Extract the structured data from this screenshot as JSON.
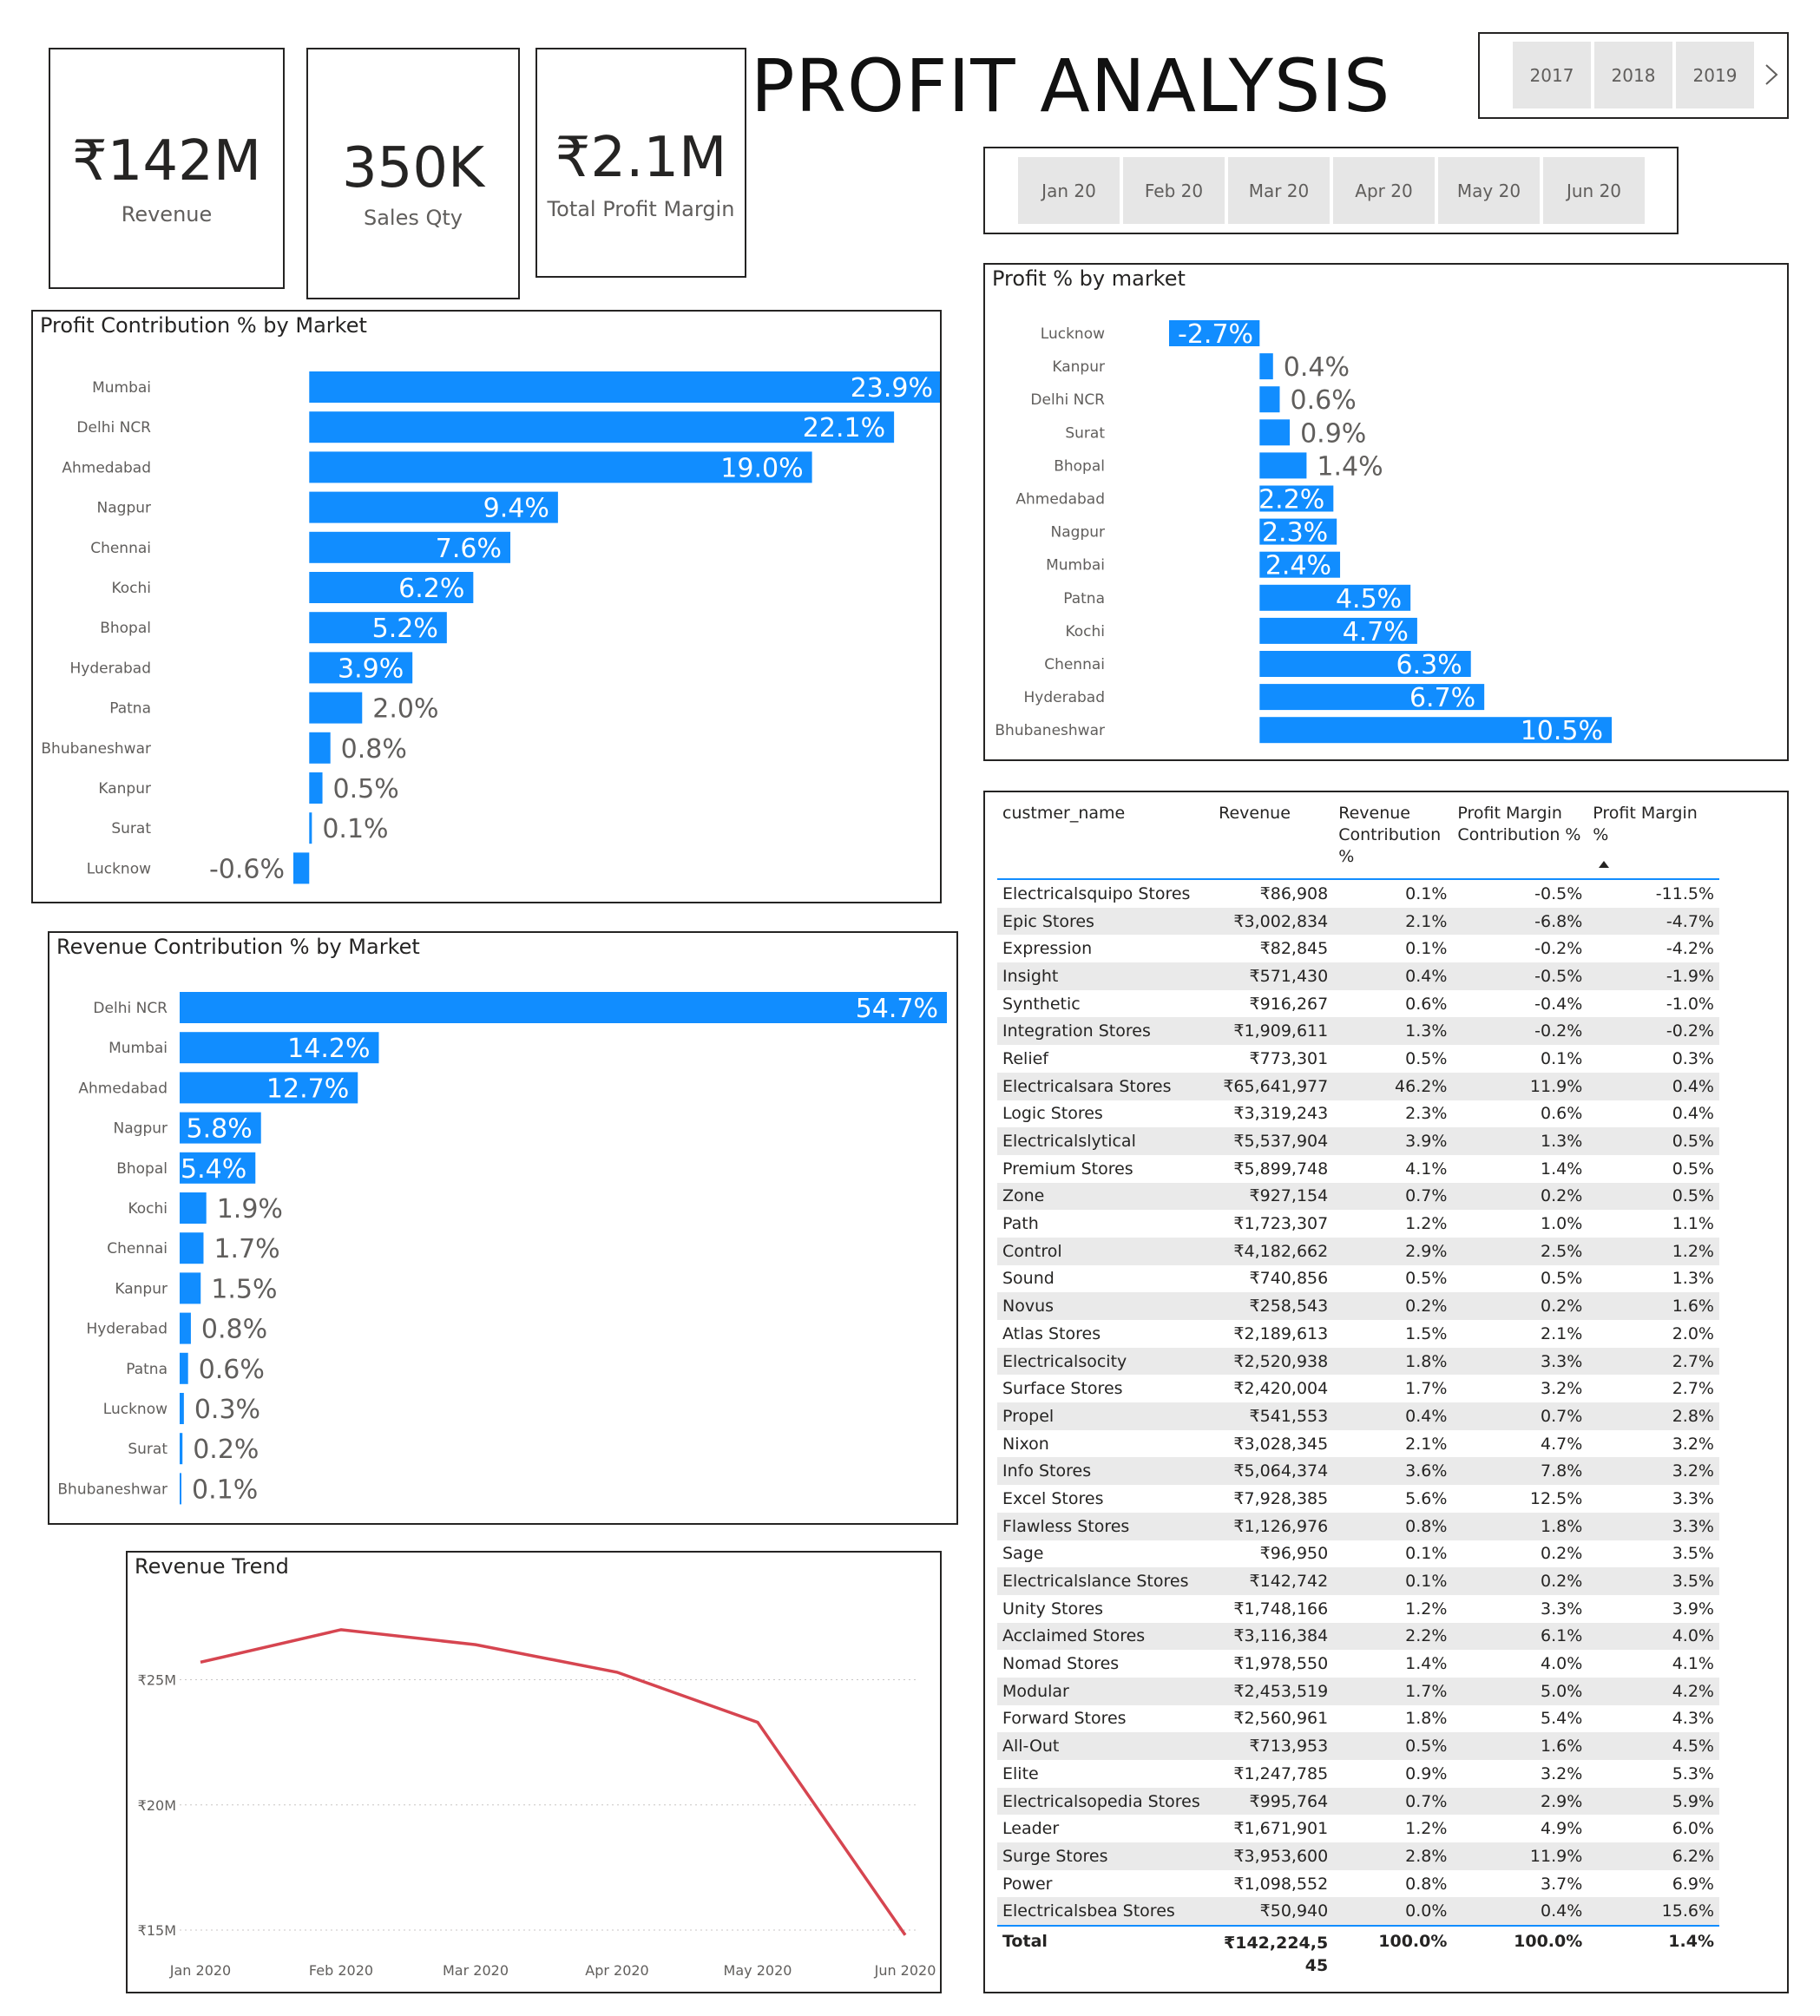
{
  "title": "PROFIT ANALYSIS",
  "kpis": {
    "revenue": {
      "value": "₹142M",
      "label": "Revenue"
    },
    "sales_qty": {
      "value": "350K",
      "label": "Sales Qty"
    },
    "profit_margin": {
      "value": "₹2.1M",
      "label": "Total Profit Margin"
    }
  },
  "year_slicer": {
    "years": [
      "2017",
      "2018",
      "2019"
    ],
    "next_icon": "chevron-right-icon"
  },
  "month_slicer": {
    "months": [
      "Jan 20",
      "Feb 20",
      "Mar 20",
      "Apr 20",
      "May 20",
      "Jun 20"
    ]
  },
  "colors": {
    "bar": "#118dff",
    "trend_line": "#d64550",
    "text": "#252423"
  },
  "chart_data": [
    {
      "id": "profit_contribution",
      "type": "bar",
      "orientation": "horizontal",
      "title": "Profit Contribution % by Market",
      "categories": [
        "Mumbai",
        "Delhi NCR",
        "Ahmedabad",
        "Nagpur",
        "Chennai",
        "Kochi",
        "Bhopal",
        "Hyderabad",
        "Patna",
        "Bhubaneshwar",
        "Kanpur",
        "Surat",
        "Lucknow"
      ],
      "values": [
        23.9,
        22.1,
        19.0,
        9.4,
        7.6,
        6.2,
        5.2,
        3.9,
        2.0,
        0.8,
        0.5,
        0.1,
        -0.6
      ],
      "labels": [
        "23.9%",
        "22.1%",
        "19.0%",
        "9.4%",
        "7.6%",
        "6.2%",
        "5.2%",
        "3.9%",
        "2.0%",
        "0.8%",
        "0.5%",
        "0.1%",
        "-0.6%"
      ],
      "xlim": [
        -0.6,
        23.9
      ]
    },
    {
      "id": "profit_pct",
      "type": "bar",
      "orientation": "horizontal",
      "title": "Profit % by market",
      "categories": [
        "Lucknow",
        "Kanpur",
        "Delhi NCR",
        "Surat",
        "Bhopal",
        "Ahmedabad",
        "Nagpur",
        "Mumbai",
        "Patna",
        "Kochi",
        "Chennai",
        "Hyderabad",
        "Bhubaneshwar"
      ],
      "values": [
        -2.7,
        0.4,
        0.6,
        0.9,
        1.4,
        2.2,
        2.3,
        2.4,
        4.5,
        4.7,
        6.3,
        6.7,
        10.5
      ],
      "labels": [
        "-2.7%",
        "0.4%",
        "0.6%",
        "0.9%",
        "1.4%",
        "2.2%",
        "2.3%",
        "2.4%",
        "4.5%",
        "4.7%",
        "6.3%",
        "6.7%",
        "10.5%"
      ],
      "xlim": [
        -2.7,
        10.5
      ]
    },
    {
      "id": "revenue_contribution",
      "type": "bar",
      "orientation": "horizontal",
      "title": "Revenue Contribution % by Market",
      "categories": [
        "Delhi NCR",
        "Mumbai",
        "Ahmedabad",
        "Nagpur",
        "Bhopal",
        "Kochi",
        "Chennai",
        "Kanpur",
        "Hyderabad",
        "Patna",
        "Lucknow",
        "Surat",
        "Bhubaneshwar"
      ],
      "values": [
        54.7,
        14.2,
        12.7,
        5.8,
        5.4,
        1.9,
        1.7,
        1.5,
        0.8,
        0.6,
        0.3,
        0.2,
        0.1
      ],
      "labels": [
        "54.7%",
        "14.2%",
        "12.7%",
        "5.8%",
        "5.4%",
        "1.9%",
        "1.7%",
        "1.5%",
        "0.8%",
        "0.6%",
        "0.3%",
        "0.2%",
        "0.1%"
      ],
      "xlim": [
        0,
        54.7
      ]
    },
    {
      "id": "revenue_trend",
      "type": "line",
      "title": "Revenue Trend",
      "x": [
        "Jan 2020",
        "Feb 2020",
        "Mar 2020",
        "Apr 2020",
        "May 2020",
        "Jun 2020"
      ],
      "y": [
        25.7,
        27.0,
        26.4,
        25.3,
        23.3,
        14.8
      ],
      "yticks": [
        15,
        20,
        25
      ],
      "ytick_labels": [
        "₹15M",
        "₹20M",
        "₹25M"
      ],
      "ylim": [
        15,
        28
      ],
      "grid": true
    }
  ],
  "table": {
    "columns": [
      "custmer_name",
      "Revenue",
      "Revenue Contribution %",
      "Profit Margin Contribution %",
      "Profit Margin %"
    ],
    "rows": [
      [
        "Electricalsquipo Stores",
        "₹86,908",
        "0.1%",
        "-0.5%",
        "-11.5%"
      ],
      [
        "Epic Stores",
        "₹3,002,834",
        "2.1%",
        "-6.8%",
        "-4.7%"
      ],
      [
        "Expression",
        "₹82,845",
        "0.1%",
        "-0.2%",
        "-4.2%"
      ],
      [
        "Insight",
        "₹571,430",
        "0.4%",
        "-0.5%",
        "-1.9%"
      ],
      [
        "Synthetic",
        "₹916,267",
        "0.6%",
        "-0.4%",
        "-1.0%"
      ],
      [
        "Integration Stores",
        "₹1,909,611",
        "1.3%",
        "-0.2%",
        "-0.2%"
      ],
      [
        "Relief",
        "₹773,301",
        "0.5%",
        "0.1%",
        "0.3%"
      ],
      [
        "Electricalsara Stores",
        "₹65,641,977",
        "46.2%",
        "11.9%",
        "0.4%"
      ],
      [
        "Logic Stores",
        "₹3,319,243",
        "2.3%",
        "0.6%",
        "0.4%"
      ],
      [
        "Electricalslytical",
        "₹5,537,904",
        "3.9%",
        "1.3%",
        "0.5%"
      ],
      [
        "Premium Stores",
        "₹5,899,748",
        "4.1%",
        "1.4%",
        "0.5%"
      ],
      [
        "Zone",
        "₹927,154",
        "0.7%",
        "0.2%",
        "0.5%"
      ],
      [
        "Path",
        "₹1,723,307",
        "1.2%",
        "1.0%",
        "1.1%"
      ],
      [
        "Control",
        "₹4,182,662",
        "2.9%",
        "2.5%",
        "1.2%"
      ],
      [
        "Sound",
        "₹740,856",
        "0.5%",
        "0.5%",
        "1.3%"
      ],
      [
        "Novus",
        "₹258,543",
        "0.2%",
        "0.2%",
        "1.6%"
      ],
      [
        "Atlas Stores",
        "₹2,189,613",
        "1.5%",
        "2.1%",
        "2.0%"
      ],
      [
        "Electricalsocity",
        "₹2,520,938",
        "1.8%",
        "3.3%",
        "2.7%"
      ],
      [
        "Surface Stores",
        "₹2,420,004",
        "1.7%",
        "3.2%",
        "2.7%"
      ],
      [
        "Propel",
        "₹541,553",
        "0.4%",
        "0.7%",
        "2.8%"
      ],
      [
        "Nixon",
        "₹3,028,345",
        "2.1%",
        "4.7%",
        "3.2%"
      ],
      [
        "Info Stores",
        "₹5,064,374",
        "3.6%",
        "7.8%",
        "3.2%"
      ],
      [
        "Excel Stores",
        "₹7,928,385",
        "5.6%",
        "12.5%",
        "3.3%"
      ],
      [
        "Flawless Stores",
        "₹1,126,976",
        "0.8%",
        "1.8%",
        "3.3%"
      ],
      [
        "Sage",
        "₹96,950",
        "0.1%",
        "0.2%",
        "3.5%"
      ],
      [
        "Electricalslance Stores",
        "₹142,742",
        "0.1%",
        "0.2%",
        "3.5%"
      ],
      [
        "Unity Stores",
        "₹1,748,166",
        "1.2%",
        "3.3%",
        "3.9%"
      ],
      [
        "Acclaimed Stores",
        "₹3,116,384",
        "2.2%",
        "6.1%",
        "4.0%"
      ],
      [
        "Nomad Stores",
        "₹1,978,550",
        "1.4%",
        "4.0%",
        "4.1%"
      ],
      [
        "Modular",
        "₹2,453,519",
        "1.7%",
        "5.0%",
        "4.2%"
      ],
      [
        "Forward Stores",
        "₹2,560,961",
        "1.8%",
        "5.4%",
        "4.3%"
      ],
      [
        "All-Out",
        "₹713,953",
        "0.5%",
        "1.6%",
        "4.5%"
      ],
      [
        "Elite",
        "₹1,247,785",
        "0.9%",
        "3.2%",
        "5.3%"
      ],
      [
        "Electricalsopedia Stores",
        "₹995,764",
        "0.7%",
        "2.9%",
        "5.9%"
      ],
      [
        "Leader",
        "₹1,671,901",
        "1.2%",
        "4.9%",
        "6.0%"
      ],
      [
        "Surge Stores",
        "₹3,953,600",
        "2.8%",
        "11.9%",
        "6.2%"
      ],
      [
        "Power",
        "₹1,098,552",
        "0.8%",
        "3.7%",
        "6.9%"
      ],
      [
        "Electricalsbea Stores",
        "₹50,940",
        "0.0%",
        "0.4%",
        "15.6%"
      ]
    ],
    "total": [
      "Total",
      "₹142,224,545",
      "100.0%",
      "100.0%",
      "1.4%"
    ],
    "sort_icon": "sort-ascending-icon"
  }
}
